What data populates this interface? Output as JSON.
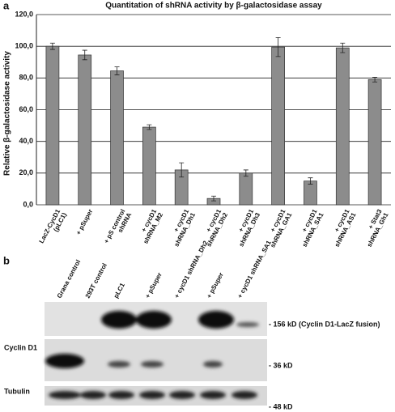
{
  "panel_a": "a",
  "chart_data": {
    "type": "bar",
    "title": "Quantitation of shRNA activity by β-galactosidase assay",
    "y_label": "Relative β-galactosidase activity",
    "categories": [
      "LacZ-CycD1\n(pLC1)",
      "+ pSuper",
      "+ pS control\nshRNA",
      "+ cycD1\nshRNA_M2",
      "+ cycD1\nshRNA_Dh1",
      "+ cycD1\nshRNA_Dh2",
      "+ cycD1\nshRNA_Dh3",
      "+ cycD1\nshRNA_GA1",
      "+ cycD1\nshRNA_SA1",
      "+ cycD1\nshRNA_AS1",
      "+ Stat3\nshRNA_Gh1"
    ],
    "values": [
      100,
      94.5,
      84.5,
      49,
      22,
      4,
      20,
      99.5,
      15,
      99,
      79
    ],
    "errors": [
      2,
      3,
      2.5,
      1.5,
      4.5,
      1.5,
      2,
      6,
      2,
      3,
      1.5
    ],
    "color": "#8c8c8c",
    "ylim": [
      0,
      120
    ],
    "yticks": [
      {
        "value": 0,
        "label": "0,0"
      },
      {
        "value": 20,
        "label": "20,0"
      },
      {
        "value": 40,
        "label": "40,0"
      },
      {
        "value": 60,
        "label": "60,0"
      },
      {
        "value": 80,
        "label": "80,0"
      },
      {
        "value": 100,
        "label": "100,0"
      },
      {
        "value": 120,
        "label": "120,0"
      }
    ],
    "grid": true
  },
  "panel_b": "b",
  "blot": {
    "lanes": [
      "Grana control",
      "293T control",
      "pLC1",
      "+ pSuper",
      "+ cycD1 shRNA_Dh2",
      "+ pSuper",
      "+ cycD1 shRNA_SA1"
    ],
    "rows": [
      "Cyclin D1",
      "Tubulin"
    ],
    "markers": [
      "- 156 kD (Cyclin D1-LacZ fusion)",
      "- 36 kD",
      "- 48 kD"
    ]
  }
}
